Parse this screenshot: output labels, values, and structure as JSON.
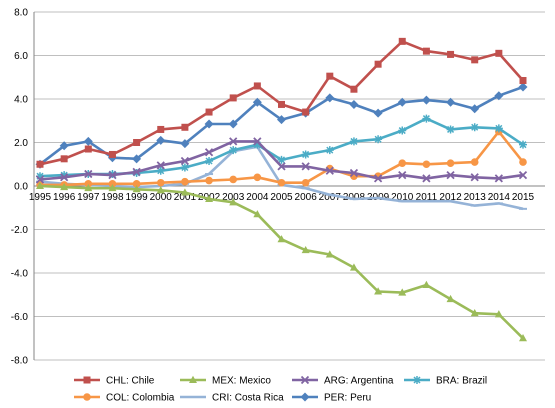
{
  "chart_data": {
    "type": "line",
    "title": "",
    "xlabel": "",
    "ylabel": "",
    "x": [
      "1995",
      "1996",
      "1997",
      "1998",
      "1999",
      "2000",
      "2001",
      "2002",
      "2003",
      "2004",
      "2005",
      "2006",
      "2007",
      "2008",
      "2009",
      "2010",
      "2011",
      "2012",
      "2013",
      "2014",
      "2015"
    ],
    "yticks": [
      "8.0",
      "6.0",
      "4.0",
      "2.0",
      "0.0",
      "-2.0",
      "-4.0",
      "-6.0",
      "-8.0"
    ],
    "ylim": [
      -8,
      8
    ],
    "grid": true,
    "legend_position": "bottom",
    "series": [
      {
        "name": "CHL: Chile",
        "color": "#c0504d",
        "marker": "square",
        "values": [
          1.0,
          1.25,
          1.7,
          1.45,
          2.0,
          2.6,
          2.7,
          3.4,
          4.05,
          4.6,
          3.75,
          3.4,
          5.05,
          4.45,
          5.6,
          6.65,
          6.2,
          6.05,
          5.8,
          6.1,
          4.85
        ]
      },
      {
        "name": "MEX: Mexico",
        "color": "#9bbb59",
        "marker": "triangle",
        "values": [
          0.0,
          -0.05,
          -0.1,
          -0.1,
          -0.15,
          -0.2,
          -0.3,
          -0.6,
          -0.75,
          -1.3,
          -2.45,
          -2.95,
          -3.15,
          -3.75,
          -4.85,
          -4.9,
          -4.55,
          -5.2,
          -5.85,
          -5.9,
          -7.0
        ]
      },
      {
        "name": "ARG: Argentina",
        "color": "#8064a2",
        "marker": "x",
        "values": [
          0.3,
          0.4,
          0.55,
          0.5,
          0.65,
          0.95,
          1.15,
          1.55,
          2.05,
          2.05,
          0.9,
          0.9,
          0.7,
          0.6,
          0.35,
          0.5,
          0.35,
          0.5,
          0.4,
          0.35,
          0.5
        ]
      },
      {
        "name": "BRA: Brazil",
        "color": "#4bacc6",
        "marker": "star",
        "values": [
          0.45,
          0.5,
          0.55,
          0.55,
          0.6,
          0.7,
          0.85,
          1.15,
          1.65,
          1.9,
          1.2,
          1.45,
          1.65,
          2.05,
          2.15,
          2.55,
          3.1,
          2.6,
          2.7,
          2.65,
          1.9
        ]
      },
      {
        "name": "COL: Colombia",
        "color": "#f79646",
        "marker": "circle",
        "values": [
          0.05,
          0.05,
          0.1,
          0.1,
          0.1,
          0.15,
          0.2,
          0.25,
          0.3,
          0.4,
          0.15,
          0.15,
          0.8,
          0.45,
          0.45,
          1.05,
          1.0,
          1.05,
          1.1,
          2.5,
          1.1
        ]
      },
      {
        "name": "CRI: Costa Rica",
        "color": "#95b3d7",
        "marker": "dash",
        "values": [
          0.2,
          0.1,
          0.05,
          0.0,
          -0.05,
          0.0,
          0.1,
          0.55,
          1.6,
          1.8,
          0.05,
          -0.1,
          -0.4,
          -0.6,
          -0.55,
          -0.7,
          -0.7,
          -0.7,
          -0.9,
          -0.8,
          -1.05
        ]
      },
      {
        "name": "PER: Peru",
        "color": "#4f81bd",
        "marker": "diamond",
        "values": [
          1.0,
          1.85,
          2.05,
          1.3,
          1.25,
          2.1,
          1.95,
          2.85,
          2.85,
          3.85,
          3.05,
          3.35,
          4.05,
          3.75,
          3.35,
          3.85,
          3.95,
          3.85,
          3.55,
          4.15,
          4.55
        ]
      }
    ]
  }
}
